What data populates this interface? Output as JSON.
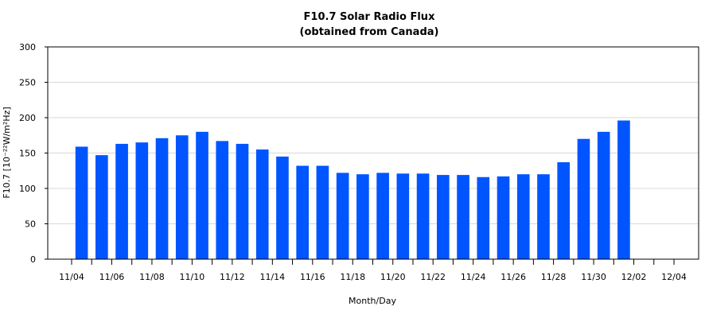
{
  "chart_data": {
    "type": "bar",
    "title": "F10.7 Solar Radio Flux",
    "subtitle": "(obtained from Canada)",
    "xlabel": "Month/Day",
    "ylabel": "F10.7 [10⁻²²W/m²Hz]",
    "ylim": [
      0,
      300
    ],
    "yticks": [
      0,
      50,
      100,
      150,
      200,
      250,
      300
    ],
    "grid": true,
    "bar_color": "#0055ff",
    "x_tick_labels": [
      "11/04",
      "11/06",
      "11/08",
      "11/10",
      "11/12",
      "11/14",
      "11/16",
      "11/18",
      "11/20",
      "11/22",
      "11/24",
      "11/26",
      "11/28",
      "11/30",
      "12/02",
      "12/04"
    ],
    "x_start": "11/04",
    "x_end": "12/04",
    "categories": [
      "11/05",
      "11/06",
      "11/07",
      "11/08",
      "11/09",
      "11/10",
      "11/11",
      "11/12",
      "11/13",
      "11/14",
      "11/15",
      "11/16",
      "11/17",
      "11/18",
      "11/19",
      "11/20",
      "11/21",
      "11/22",
      "11/23",
      "11/24",
      "11/25",
      "11/26",
      "11/27",
      "11/28",
      "11/29",
      "11/30",
      "12/01",
      "12/02",
      "12/03",
      "12/04"
    ],
    "values": [
      159,
      147,
      163,
      165,
      171,
      175,
      180,
      167,
      163,
      155,
      145,
      132,
      132,
      122,
      120,
      122,
      121,
      121,
      119,
      119,
      116,
      117,
      120,
      120,
      137,
      170,
      180,
      196,
      null,
      null
    ]
  }
}
